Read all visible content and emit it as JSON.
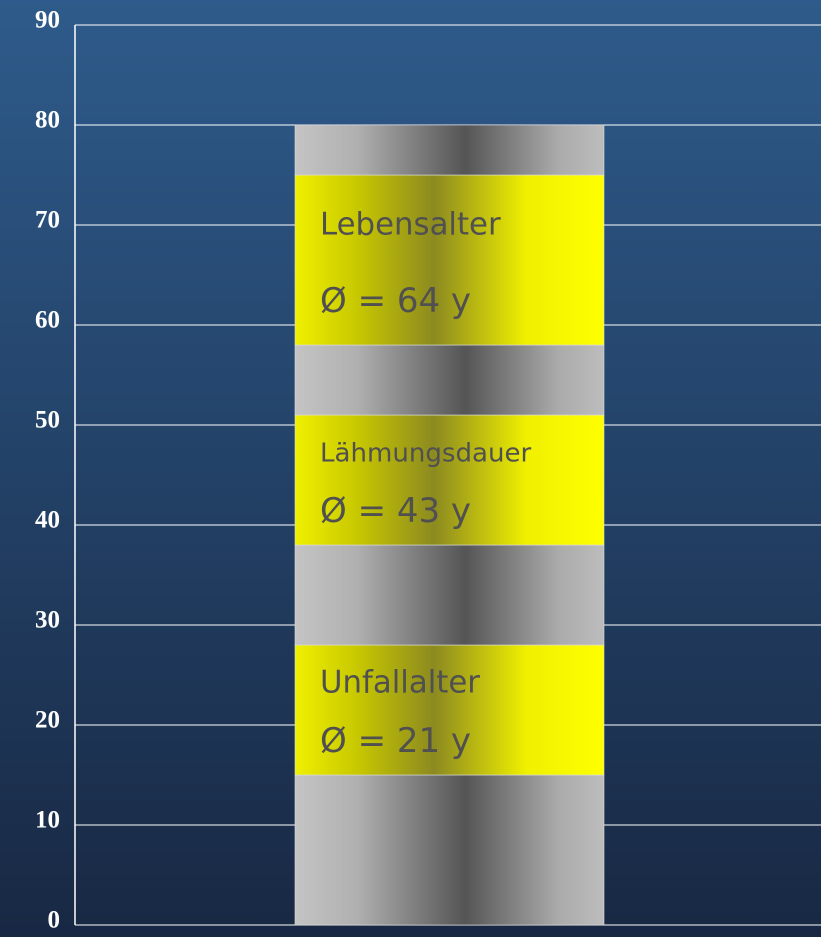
{
  "chart_data": {
    "type": "stacked_bar",
    "values": [
      15,
      13,
      10,
      13,
      7,
      17,
      5
    ],
    "segment_colors": [
      "gray",
      "yellow",
      "gray",
      "yellow",
      "gray",
      "yellow",
      "gray"
    ],
    "segment_labels": [
      null,
      [
        "Unfallalter",
        "Ø = 21 y"
      ],
      null,
      [
        "Lähmungsdauer",
        "Ø = 43 y"
      ],
      null,
      [
        "Lebensalter",
        "Ø = 64 y"
      ],
      null
    ],
    "ylim": [
      0,
      90
    ],
    "yticks": [
      0,
      10,
      20,
      30,
      40,
      50,
      60,
      70,
      80,
      90
    ],
    "grid": true
  }
}
